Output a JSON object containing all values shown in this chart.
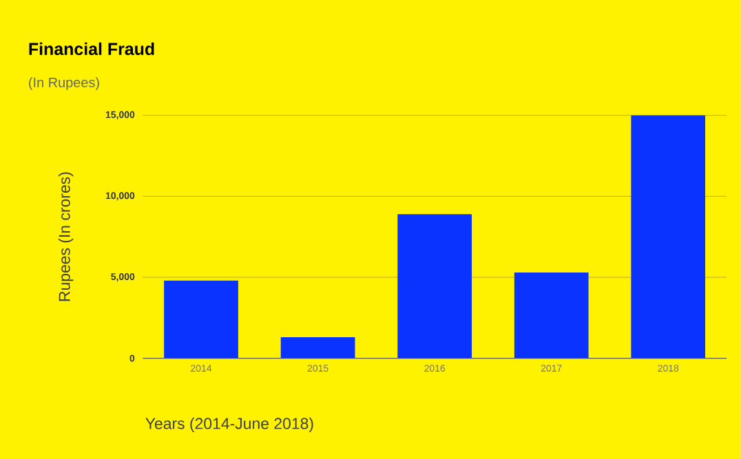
{
  "chart_data": {
    "type": "bar",
    "title": "Financial Fraud",
    "subtitle": "(In Rupees)",
    "xlabel": "Years (2014-June 2018)",
    "ylabel": "Rupees (In crores)",
    "categories": [
      "2014",
      "2015",
      "2016",
      "2017",
      "2018"
    ],
    "values": [
      4800,
      1300,
      8900,
      5300,
      15000
    ],
    "color": "#0a33ff",
    "ylim": [
      0,
      15000
    ],
    "yticks": [
      0,
      {
        "value": 5000,
        "label": "5,000"
      },
      {
        "value": 10000,
        "label": "10,000"
      },
      {
        "value": 15000,
        "label": "15,000"
      }
    ],
    "grid": "y"
  }
}
